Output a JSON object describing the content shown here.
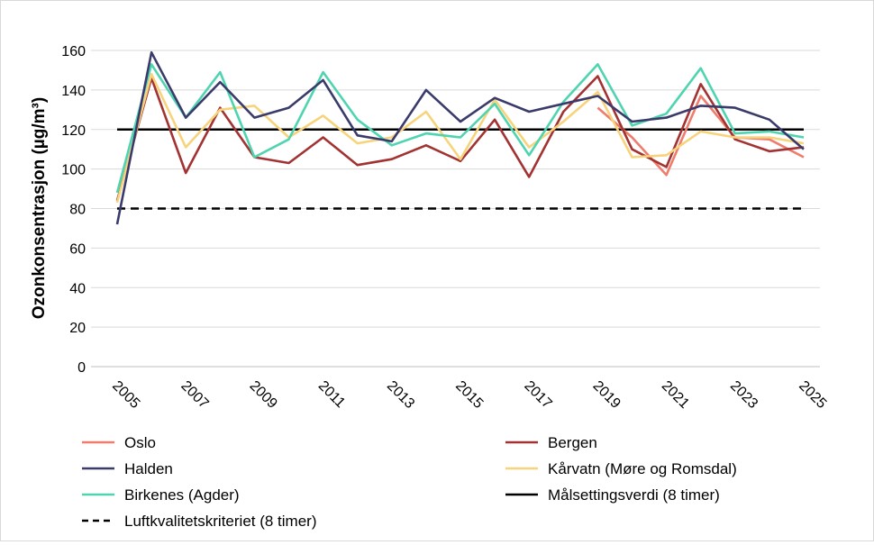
{
  "chart_data": {
    "type": "line",
    "title": "",
    "ylabel": "Ozonkonsentrasjon (µg/m³)",
    "xlabel": "",
    "ylim": [
      0,
      160
    ],
    "yticks": [
      "0",
      "20",
      "40",
      "60",
      "80",
      "100",
      "120",
      "140",
      "160"
    ],
    "xtick_labels": [
      "2005",
      "2007",
      "2009",
      "2011",
      "2013",
      "2015",
      "2017",
      "2019",
      "2021",
      "2023",
      "2025"
    ],
    "x": [
      2005,
      2006,
      2007,
      2008,
      2009,
      2010,
      2011,
      2012,
      2013,
      2014,
      2015,
      2016,
      2017,
      2018,
      2019,
      2020,
      2021,
      2022,
      2023,
      2024,
      2025
    ],
    "grid": true,
    "legend_position": "bottom",
    "series": [
      {
        "name": "Oslo",
        "color": "#f07c6c",
        "dash": false,
        "values": [
          null,
          null,
          null,
          null,
          null,
          null,
          null,
          null,
          null,
          null,
          null,
          null,
          null,
          null,
          131,
          116,
          97,
          137,
          116,
          115,
          106
        ]
      },
      {
        "name": "Bergen",
        "color": "#a33232",
        "dash": false,
        "values": [
          84,
          146,
          98,
          131,
          106,
          103,
          116,
          102,
          105,
          112,
          104,
          125,
          96,
          129,
          147,
          110,
          101,
          143,
          115,
          109,
          111
        ]
      },
      {
        "name": "Halden",
        "color": "#3b3b6b",
        "dash": false,
        "values": [
          72,
          159,
          126,
          144,
          126,
          131,
          145,
          117,
          114,
          140,
          124,
          136,
          129,
          133,
          137,
          124,
          126,
          132,
          131,
          125,
          110
        ]
      },
      {
        "name": "Kårvatn (Møre og Romsdal)",
        "color": "#f7d47c",
        "dash": false,
        "values": [
          83,
          148,
          111,
          130,
          132,
          116,
          127,
          113,
          116,
          129,
          105,
          135,
          111,
          124,
          139,
          106,
          107,
          119,
          116,
          116,
          113
        ]
      },
      {
        "name": "Birkenes (Agder)",
        "color": "#4fd4b0",
        "dash": false,
        "values": [
          88,
          153,
          126,
          149,
          106,
          115,
          149,
          125,
          112,
          118,
          116,
          133,
          107,
          134,
          153,
          122,
          128,
          151,
          118,
          119,
          116
        ]
      },
      {
        "name": "Målsettingsverdi (8 timer)",
        "color": "#000000",
        "dash": false,
        "values": [
          120,
          120,
          120,
          120,
          120,
          120,
          120,
          120,
          120,
          120,
          120,
          120,
          120,
          120,
          120,
          120,
          120,
          120,
          120,
          120,
          120
        ]
      },
      {
        "name": "Luftkvalitetskriteriet (8 timer)",
        "color": "#000000",
        "dash": true,
        "values": [
          80,
          80,
          80,
          80,
          80,
          80,
          80,
          80,
          80,
          80,
          80,
          80,
          80,
          80,
          80,
          80,
          80,
          80,
          80,
          80,
          80
        ]
      }
    ]
  }
}
